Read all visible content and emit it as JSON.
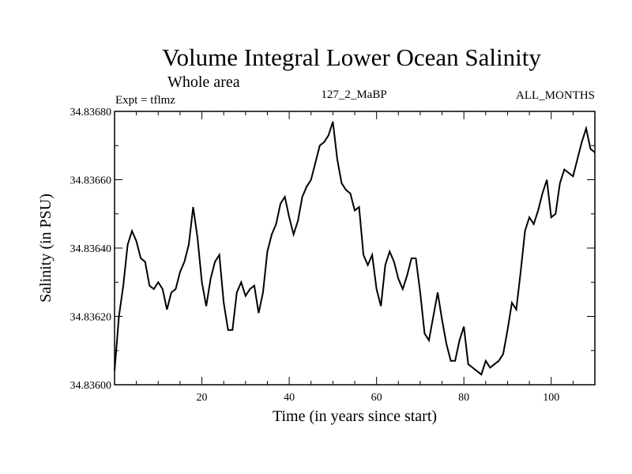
{
  "chart_data": {
    "type": "line",
    "title": "Volume Integral Lower Ocean Salinity",
    "subtitle": "Whole area",
    "expt_label": "Expt = tflmz",
    "run_label": "127_2_MaBP",
    "period_label": "ALL_MONTHS",
    "xlabel": "Time (in years since start)",
    "ylabel": "Salinity (in PSU)",
    "xlim": [
      0,
      110
    ],
    "ylim": [
      34.836,
      34.8368
    ],
    "x_ticks": [
      20,
      40,
      60,
      80,
      100
    ],
    "x_tick_labels": [
      "20",
      "40",
      "60",
      "80",
      "100"
    ],
    "y_ticks": [
      34.836,
      34.8362,
      34.8364,
      34.8366,
      34.8368
    ],
    "y_tick_labels": [
      "34.83600",
      "34.83620",
      "34.83640",
      "34.83660",
      "34.83680"
    ],
    "color": "#000000",
    "series": [
      {
        "name": "Salinity",
        "x": [
          0,
          1,
          2,
          3,
          4,
          5,
          6,
          7,
          8,
          9,
          10,
          11,
          12,
          13,
          14,
          15,
          16,
          17,
          18,
          19,
          20,
          21,
          22,
          23,
          24,
          25,
          26,
          27,
          28,
          29,
          30,
          31,
          32,
          33,
          34,
          35,
          36,
          37,
          38,
          39,
          40,
          41,
          42,
          43,
          44,
          45,
          46,
          47,
          48,
          49,
          50,
          51,
          52,
          53,
          54,
          55,
          56,
          57,
          58,
          59,
          60,
          61,
          62,
          63,
          64,
          65,
          66,
          67,
          68,
          69,
          70,
          71,
          72,
          73,
          74,
          75,
          76,
          77,
          78,
          79,
          80,
          81,
          82,
          83,
          84,
          85,
          86,
          87,
          88,
          89,
          90,
          91,
          92,
          93,
          94,
          95,
          96,
          97,
          98,
          99,
          100,
          101,
          102,
          103,
          104,
          105,
          106,
          107,
          108,
          109,
          110
        ],
        "values": [
          34.83604,
          34.8362,
          34.83629,
          34.83641,
          34.83645,
          34.83642,
          34.83637,
          34.83636,
          34.83629,
          34.83628,
          34.8363,
          34.83628,
          34.83622,
          34.83627,
          34.83628,
          34.83633,
          34.83636,
          34.83641,
          34.83652,
          34.83643,
          34.8363,
          34.83623,
          34.83631,
          34.83636,
          34.83638,
          34.83624,
          34.83616,
          34.83616,
          34.83627,
          34.8363,
          34.83626,
          34.83628,
          34.83629,
          34.83621,
          34.83627,
          34.83639,
          34.83644,
          34.83647,
          34.83653,
          34.83655,
          34.83649,
          34.83644,
          34.83648,
          34.83655,
          34.83658,
          34.8366,
          34.83665,
          34.8367,
          34.83671,
          34.83673,
          34.83677,
          34.83666,
          34.83659,
          34.83657,
          34.83656,
          34.83651,
          34.83652,
          34.83638,
          34.83635,
          34.83638,
          34.83628,
          34.83623,
          34.83635,
          34.83639,
          34.83636,
          34.83631,
          34.83628,
          34.83632,
          34.83637,
          34.83637,
          34.83627,
          34.83615,
          34.83613,
          34.8362,
          34.83627,
          34.83619,
          34.83612,
          34.83607,
          34.83607,
          34.83613,
          34.83617,
          34.83606,
          34.83605,
          34.83604,
          34.83603,
          34.83607,
          34.83605,
          34.83606,
          34.83607,
          34.83609,
          34.83616,
          34.83624,
          34.83622,
          34.83633,
          34.83645,
          34.83649,
          34.83647,
          34.83651,
          34.83656,
          34.8366,
          34.83649,
          34.8365,
          34.83659,
          34.83663,
          34.83662,
          34.83661,
          34.83666,
          34.83671,
          34.83675,
          34.83669,
          34.83668
        ]
      }
    ]
  }
}
